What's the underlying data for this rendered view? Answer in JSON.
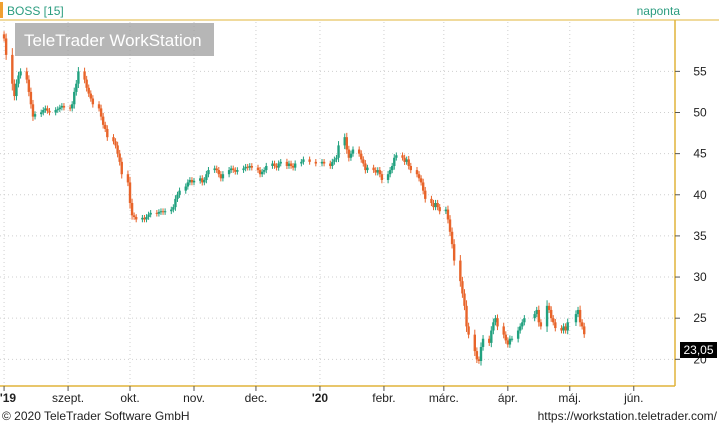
{
  "chart_data": {
    "type": "candlestick",
    "symbol_label": "BOSS [15]",
    "interval_label": "naponta",
    "watermark": "TeleTrader WorkStation",
    "last_price_label": "23,05",
    "colors": {
      "up": "#21a17f",
      "down": "#e8642a",
      "axis": "#e0b43a",
      "grid": "#cfcfcf"
    },
    "y_ticks": [
      {
        "value": 20,
        "label": "20"
      },
      {
        "value": 25,
        "label": "25"
      },
      {
        "value": 30,
        "label": "30"
      },
      {
        "value": 35,
        "label": "35"
      },
      {
        "value": 40,
        "label": "40"
      },
      {
        "value": 45,
        "label": "45"
      },
      {
        "value": 50,
        "label": "50"
      },
      {
        "value": 55,
        "label": "55"
      }
    ],
    "ylim": [
      17,
      61
    ],
    "x_ticks": [
      {
        "date": "2019-08-01",
        "label": "'19",
        "bold": true
      },
      {
        "date": "2019-09-01",
        "label": "szept.",
        "bold": false
      },
      {
        "date": "2019-10-01",
        "label": "okt.",
        "bold": false
      },
      {
        "date": "2019-11-01",
        "label": "nov.",
        "bold": false
      },
      {
        "date": "2019-12-01",
        "label": "dec.",
        "bold": false
      },
      {
        "date": "2020-01-01",
        "label": "'20",
        "bold": true
      },
      {
        "date": "2020-02-01",
        "label": "febr.",
        "bold": false
      },
      {
        "date": "2020-03-01",
        "label": "márc.",
        "bold": false
      },
      {
        "date": "2020-04-01",
        "label": "ápr.",
        "bold": false
      },
      {
        "date": "2020-05-01",
        "label": "máj.",
        "bold": false
      },
      {
        "date": "2020-06-01",
        "label": "jún.",
        "bold": false
      }
    ],
    "xlim": [
      "2019-07-31",
      "2020-06-20"
    ],
    "series": [
      {
        "date": "2019-08-01",
        "close": 59.0
      },
      {
        "date": "2019-08-02",
        "close": 57.0
      },
      {
        "date": "2019-08-05",
        "close": 53.5
      },
      {
        "date": "2019-08-06",
        "close": 52.0
      },
      {
        "date": "2019-08-07",
        "close": 53.5
      },
      {
        "date": "2019-08-08",
        "close": 54.5
      },
      {
        "date": "2019-08-09",
        "close": 55.0
      },
      {
        "date": "2019-08-12",
        "close": 54.0
      },
      {
        "date": "2019-08-13",
        "close": 52.5
      },
      {
        "date": "2019-08-14",
        "close": 51.0
      },
      {
        "date": "2019-08-15",
        "close": 49.5
      },
      {
        "date": "2019-08-16",
        "close": 49.8
      },
      {
        "date": "2019-08-19",
        "close": 50.0
      },
      {
        "date": "2019-08-20",
        "close": 50.3
      },
      {
        "date": "2019-08-21",
        "close": 50.5
      },
      {
        "date": "2019-08-22",
        "close": 50.2
      },
      {
        "date": "2019-08-23",
        "close": 50.0
      },
      {
        "date": "2019-08-26",
        "close": 50.3
      },
      {
        "date": "2019-08-27",
        "close": 50.4
      },
      {
        "date": "2019-08-28",
        "close": 50.6
      },
      {
        "date": "2019-08-29",
        "close": 50.8
      },
      {
        "date": "2019-08-30",
        "close": 50.6
      },
      {
        "date": "2019-09-02",
        "close": 50.5
      },
      {
        "date": "2019-09-03",
        "close": 51.0
      },
      {
        "date": "2019-09-04",
        "close": 52.5
      },
      {
        "date": "2019-09-05",
        "close": 53.5
      },
      {
        "date": "2019-09-06",
        "close": 55.0
      },
      {
        "date": "2019-09-09",
        "close": 54.0
      },
      {
        "date": "2019-09-10",
        "close": 53.0
      },
      {
        "date": "2019-09-11",
        "close": 52.3
      },
      {
        "date": "2019-09-12",
        "close": 51.7
      },
      {
        "date": "2019-09-13",
        "close": 51.0
      },
      {
        "date": "2019-09-16",
        "close": 50.5
      },
      {
        "date": "2019-09-17",
        "close": 49.5
      },
      {
        "date": "2019-09-18",
        "close": 48.5
      },
      {
        "date": "2019-09-19",
        "close": 48.0
      },
      {
        "date": "2019-09-20",
        "close": 47.0
      },
      {
        "date": "2019-09-23",
        "close": 46.5
      },
      {
        "date": "2019-09-24",
        "close": 46.0
      },
      {
        "date": "2019-09-25",
        "close": 45.0
      },
      {
        "date": "2019-09-26",
        "close": 44.0
      },
      {
        "date": "2019-09-27",
        "close": 42.5
      },
      {
        "date": "2019-09-30",
        "close": 41.5
      },
      {
        "date": "2019-10-01",
        "close": 39.0
      },
      {
        "date": "2019-10-02",
        "close": 37.5
      },
      {
        "date": "2019-10-03",
        "close": 37.3
      },
      {
        "date": "2019-10-04",
        "close": 37.0
      },
      {
        "date": "2019-10-07",
        "close": 37.2
      },
      {
        "date": "2019-10-08",
        "close": 37.0
      },
      {
        "date": "2019-10-09",
        "close": 37.3
      },
      {
        "date": "2019-10-10",
        "close": 37.6
      },
      {
        "date": "2019-10-11",
        "close": 37.8
      },
      {
        "date": "2019-10-14",
        "close": 37.7
      },
      {
        "date": "2019-10-15",
        "close": 37.9
      },
      {
        "date": "2019-10-16",
        "close": 38.0
      },
      {
        "date": "2019-10-17",
        "close": 37.9
      },
      {
        "date": "2019-10-18",
        "close": 38.0
      },
      {
        "date": "2019-10-21",
        "close": 38.2
      },
      {
        "date": "2019-10-22",
        "close": 38.5
      },
      {
        "date": "2019-10-23",
        "close": 39.5
      },
      {
        "date": "2019-10-24",
        "close": 40.0
      },
      {
        "date": "2019-10-25",
        "close": 40.5
      },
      {
        "date": "2019-10-28",
        "close": 41.0
      },
      {
        "date": "2019-10-29",
        "close": 41.5
      },
      {
        "date": "2019-10-30",
        "close": 41.8
      },
      {
        "date": "2019-10-31",
        "close": 41.5
      },
      {
        "date": "2019-11-01",
        "close": 41.7
      },
      {
        "date": "2019-11-04",
        "close": 42.0
      },
      {
        "date": "2019-11-05",
        "close": 41.5
      },
      {
        "date": "2019-11-06",
        "close": 41.8
      },
      {
        "date": "2019-11-07",
        "close": 42.5
      },
      {
        "date": "2019-11-08",
        "close": 43.0
      },
      {
        "date": "2019-11-11",
        "close": 43.2
      },
      {
        "date": "2019-11-12",
        "close": 43.0
      },
      {
        "date": "2019-11-13",
        "close": 42.5
      },
      {
        "date": "2019-11-14",
        "close": 42.0
      },
      {
        "date": "2019-11-15",
        "close": 42.5
      },
      {
        "date": "2019-11-18",
        "close": 43.0
      },
      {
        "date": "2019-11-19",
        "close": 43.2
      },
      {
        "date": "2019-11-20",
        "close": 43.0
      },
      {
        "date": "2019-11-21",
        "close": 42.8
      },
      {
        "date": "2019-11-22",
        "close": 43.0
      },
      {
        "date": "2019-11-25",
        "close": 43.2
      },
      {
        "date": "2019-11-26",
        "close": 43.4
      },
      {
        "date": "2019-11-27",
        "close": 43.3
      },
      {
        "date": "2019-11-28",
        "close": 43.5
      },
      {
        "date": "2019-11-29",
        "close": 43.3
      },
      {
        "date": "2019-12-02",
        "close": 43.0
      },
      {
        "date": "2019-12-03",
        "close": 42.5
      },
      {
        "date": "2019-12-04",
        "close": 42.8
      },
      {
        "date": "2019-12-05",
        "close": 43.0
      },
      {
        "date": "2019-12-06",
        "close": 43.5
      },
      {
        "date": "2019-12-09",
        "close": 43.8
      },
      {
        "date": "2019-12-10",
        "close": 43.5
      },
      {
        "date": "2019-12-11",
        "close": 43.3
      },
      {
        "date": "2019-12-12",
        "close": 43.8
      },
      {
        "date": "2019-12-13",
        "close": 44.0
      },
      {
        "date": "2019-12-16",
        "close": 43.5
      },
      {
        "date": "2019-12-17",
        "close": 43.8
      },
      {
        "date": "2019-12-18",
        "close": 43.5
      },
      {
        "date": "2019-12-19",
        "close": 43.3
      },
      {
        "date": "2019-12-20",
        "close": 43.8
      },
      {
        "date": "2019-12-23",
        "close": 44.0
      },
      {
        "date": "2019-12-24",
        "close": 44.3
      },
      {
        "date": "2019-12-27",
        "close": 44.0
      },
      {
        "date": "2019-12-30",
        "close": 43.8
      },
      {
        "date": "2020-01-02",
        "close": 44.0
      },
      {
        "date": "2020-01-03",
        "close": 43.8
      },
      {
        "date": "2020-01-06",
        "close": 43.5
      },
      {
        "date": "2020-01-07",
        "close": 44.0
      },
      {
        "date": "2020-01-08",
        "close": 44.3
      },
      {
        "date": "2020-01-09",
        "close": 44.5
      },
      {
        "date": "2020-01-10",
        "close": 46.0
      },
      {
        "date": "2020-01-13",
        "close": 47.0
      },
      {
        "date": "2020-01-14",
        "close": 45.5
      },
      {
        "date": "2020-01-15",
        "close": 44.5
      },
      {
        "date": "2020-01-16",
        "close": 45.0
      },
      {
        "date": "2020-01-17",
        "close": 45.5
      },
      {
        "date": "2020-01-20",
        "close": 45.0
      },
      {
        "date": "2020-01-21",
        "close": 44.3
      },
      {
        "date": "2020-01-22",
        "close": 43.8
      },
      {
        "date": "2020-01-23",
        "close": 43.0
      },
      {
        "date": "2020-01-24",
        "close": 43.3
      },
      {
        "date": "2020-01-27",
        "close": 43.0
      },
      {
        "date": "2020-01-28",
        "close": 42.7
      },
      {
        "date": "2020-01-29",
        "close": 43.0
      },
      {
        "date": "2020-01-30",
        "close": 42.5
      },
      {
        "date": "2020-01-31",
        "close": 41.8
      },
      {
        "date": "2020-02-03",
        "close": 42.5
      },
      {
        "date": "2020-02-04",
        "close": 43.0
      },
      {
        "date": "2020-02-05",
        "close": 43.5
      },
      {
        "date": "2020-02-06",
        "close": 44.5
      },
      {
        "date": "2020-02-07",
        "close": 44.8
      },
      {
        "date": "2020-02-10",
        "close": 44.5
      },
      {
        "date": "2020-02-11",
        "close": 44.0
      },
      {
        "date": "2020-02-12",
        "close": 44.3
      },
      {
        "date": "2020-02-13",
        "close": 43.5
      },
      {
        "date": "2020-02-14",
        "close": 43.0
      },
      {
        "date": "2020-02-17",
        "close": 42.5
      },
      {
        "date": "2020-02-18",
        "close": 42.0
      },
      {
        "date": "2020-02-19",
        "close": 41.5
      },
      {
        "date": "2020-02-20",
        "close": 40.5
      },
      {
        "date": "2020-02-21",
        "close": 39.5
      },
      {
        "date": "2020-02-24",
        "close": 39.0
      },
      {
        "date": "2020-02-25",
        "close": 38.5
      },
      {
        "date": "2020-02-26",
        "close": 39.0
      },
      {
        "date": "2020-02-27",
        "close": 38.5
      },
      {
        "date": "2020-02-28",
        "close": 38.0
      },
      {
        "date": "2020-03-02",
        "close": 38.2
      },
      {
        "date": "2020-03-03",
        "close": 37.0
      },
      {
        "date": "2020-03-04",
        "close": 35.5
      },
      {
        "date": "2020-03-05",
        "close": 34.0
      },
      {
        "date": "2020-03-06",
        "close": 32.0
      },
      {
        "date": "2020-03-09",
        "close": 29.5
      },
      {
        "date": "2020-03-10",
        "close": 28.0
      },
      {
        "date": "2020-03-11",
        "close": 26.5
      },
      {
        "date": "2020-03-12",
        "close": 24.0
      },
      {
        "date": "2020-03-13",
        "close": 23.0
      },
      {
        "date": "2020-03-16",
        "close": 21.0
      },
      {
        "date": "2020-03-17",
        "close": 20.0
      },
      {
        "date": "2020-03-18",
        "close": 19.8
      },
      {
        "date": "2020-03-19",
        "close": 21.5
      },
      {
        "date": "2020-03-20",
        "close": 22.5
      },
      {
        "date": "2020-03-23",
        "close": 22.0
      },
      {
        "date": "2020-03-24",
        "close": 23.5
      },
      {
        "date": "2020-03-25",
        "close": 24.5
      },
      {
        "date": "2020-03-26",
        "close": 25.0
      },
      {
        "date": "2020-03-27",
        "close": 24.0
      },
      {
        "date": "2020-03-30",
        "close": 23.0
      },
      {
        "date": "2020-03-31",
        "close": 22.3
      },
      {
        "date": "2020-04-01",
        "close": 21.8
      },
      {
        "date": "2020-04-02",
        "close": 22.5
      },
      {
        "date": "2020-04-03",
        "close": 22.5
      },
      {
        "date": "2020-04-06",
        "close": 23.5
      },
      {
        "date": "2020-04-07",
        "close": 24.0
      },
      {
        "date": "2020-04-08",
        "close": 24.5
      },
      {
        "date": "2020-04-09",
        "close": 25.0
      },
      {
        "date": "2020-04-14",
        "close": 25.5
      },
      {
        "date": "2020-04-15",
        "close": 26.0
      },
      {
        "date": "2020-04-16",
        "close": 24.5
      },
      {
        "date": "2020-04-17",
        "close": 24.0
      },
      {
        "date": "2020-04-20",
        "close": 26.5
      },
      {
        "date": "2020-04-21",
        "close": 26.0
      },
      {
        "date": "2020-04-22",
        "close": 25.0
      },
      {
        "date": "2020-04-23",
        "close": 24.5
      },
      {
        "date": "2020-04-24",
        "close": 23.8
      },
      {
        "date": "2020-04-27",
        "close": 23.5
      },
      {
        "date": "2020-04-28",
        "close": 24.0
      },
      {
        "date": "2020-04-29",
        "close": 23.5
      },
      {
        "date": "2020-04-30",
        "close": 24.5
      },
      {
        "date": "2020-05-04",
        "close": 25.5
      },
      {
        "date": "2020-05-05",
        "close": 26.0
      },
      {
        "date": "2020-05-06",
        "close": 24.5
      },
      {
        "date": "2020-05-07",
        "close": 24.0
      },
      {
        "date": "2020-05-08",
        "close": 23.05
      }
    ]
  },
  "footer": {
    "copyright": "© 2020 TeleTrader Software GmbH",
    "url": "https://workstation.teletrader.com/"
  }
}
